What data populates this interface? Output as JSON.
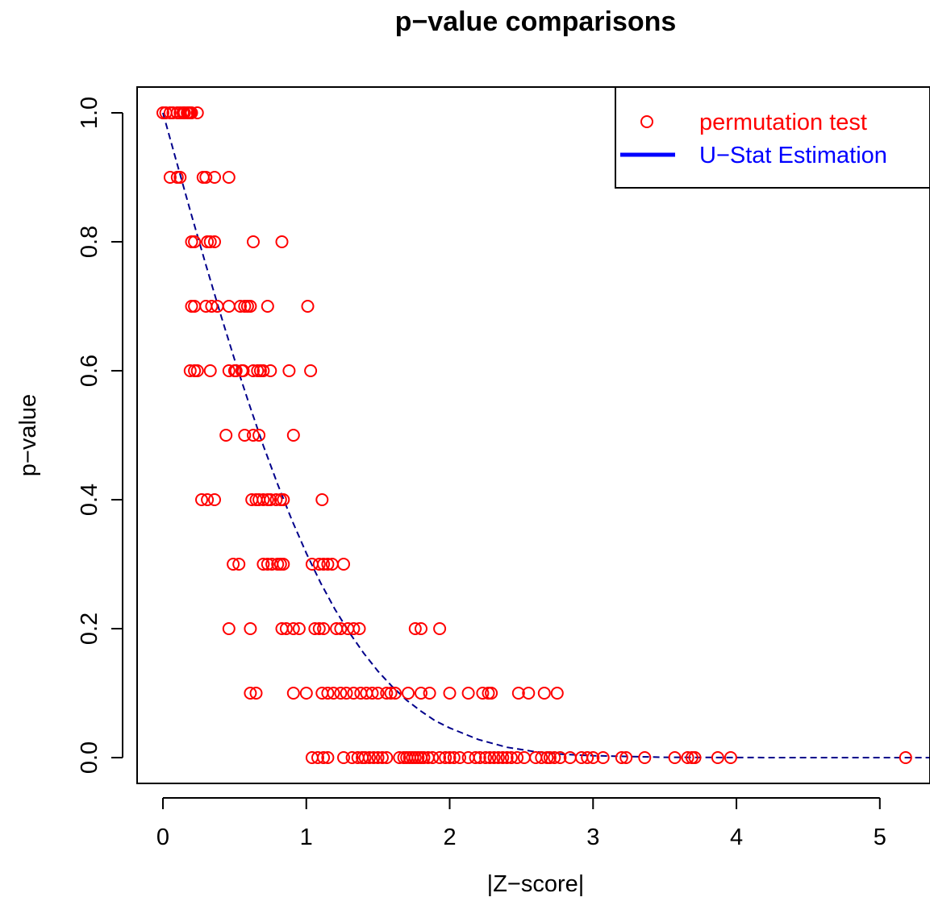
{
  "chart_data": {
    "type": "scatter",
    "title": "p−value comparisons",
    "xlabel": "|Z−score|",
    "ylabel": "p−value",
    "xlim": [
      -0.18,
      5.35
    ],
    "ylim": [
      -0.04,
      1.04
    ],
    "x_ticks": [
      0,
      1,
      2,
      3,
      4,
      5
    ],
    "x_tick_labels": [
      "0",
      "1",
      "2",
      "3",
      "4",
      "5"
    ],
    "y_ticks": [
      0.0,
      0.2,
      0.4,
      0.6,
      0.8,
      1.0
    ],
    "y_tick_labels": [
      "0.0",
      "0.2",
      "0.4",
      "0.6",
      "0.8",
      "1.0"
    ],
    "grid": false,
    "legend_position": "top-right",
    "colors": {
      "points": "#ff0000",
      "curve": "#00008b",
      "legend_line": "#0000ff"
    },
    "legend": [
      {
        "label": "permutation test",
        "marker": "open-circle",
        "color": "#ff0000"
      },
      {
        "label": "U−Stat Estimation",
        "marker": "line",
        "color": "#0000ff"
      }
    ],
    "series": [
      {
        "name": "permutation test",
        "kind": "points",
        "groups": [
          {
            "y": 1.0,
            "x": [
              0.0,
              0.02,
              0.05,
              0.07,
              0.1,
              0.12,
              0.14,
              0.15,
              0.17,
              0.18,
              0.19,
              0.2,
              0.24
            ]
          },
          {
            "y": 0.9,
            "x": [
              0.05,
              0.1,
              0.12,
              0.28,
              0.3,
              0.36,
              0.46
            ]
          },
          {
            "y": 0.8,
            "x": [
              0.2,
              0.22,
              0.31,
              0.33,
              0.36,
              0.63,
              0.83
            ]
          },
          {
            "y": 0.7,
            "x": [
              0.2,
              0.22,
              0.3,
              0.34,
              0.38,
              0.46,
              0.54,
              0.57,
              0.59,
              0.61,
              0.73,
              1.01
            ]
          },
          {
            "y": 0.6,
            "x": [
              0.19,
              0.22,
              0.24,
              0.33,
              0.46,
              0.5,
              0.51,
              0.55,
              0.56,
              0.63,
              0.66,
              0.68,
              0.7,
              0.75,
              0.88,
              1.03
            ]
          },
          {
            "y": 0.5,
            "x": [
              0.44,
              0.57,
              0.63,
              0.67,
              0.91
            ]
          },
          {
            "y": 0.4,
            "x": [
              0.27,
              0.31,
              0.36,
              0.62,
              0.65,
              0.67,
              0.7,
              0.73,
              0.75,
              0.79,
              0.82,
              0.84,
              1.11
            ]
          },
          {
            "y": 0.3,
            "x": [
              0.49,
              0.53,
              0.7,
              0.73,
              0.76,
              0.8,
              0.82,
              0.84,
              1.04,
              1.09,
              1.12,
              1.15,
              1.18,
              1.26
            ]
          },
          {
            "y": 0.2,
            "x": [
              0.46,
              0.61,
              0.83,
              0.86,
              0.91,
              0.95,
              1.06,
              1.09,
              1.12,
              1.21,
              1.24,
              1.29,
              1.33,
              1.37,
              1.76,
              1.8,
              1.93
            ]
          },
          {
            "y": 0.1,
            "x": [
              0.61,
              0.65,
              0.91,
              1.0,
              1.11,
              1.15,
              1.19,
              1.24,
              1.28,
              1.33,
              1.38,
              1.42,
              1.46,
              1.5,
              1.56,
              1.59,
              1.62,
              1.71,
              1.8,
              1.86,
              2.0,
              2.13,
              2.23,
              2.27,
              2.29,
              2.48,
              2.55,
              2.66,
              2.75
            ]
          },
          {
            "y": 0.0,
            "x": [
              1.04,
              1.08,
              1.12,
              1.15,
              1.26,
              1.32,
              1.36,
              1.39,
              1.41,
              1.44,
              1.47,
              1.5,
              1.53,
              1.56,
              1.65,
              1.68,
              1.7,
              1.72,
              1.74,
              1.76,
              1.78,
              1.8,
              1.82,
              1.85,
              1.88,
              1.93,
              1.97,
              2.0,
              2.03,
              2.07,
              2.13,
              2.18,
              2.21,
              2.25,
              2.28,
              2.31,
              2.34,
              2.37,
              2.4,
              2.43,
              2.47,
              2.52,
              2.6,
              2.64,
              2.68,
              2.7,
              2.73,
              2.77,
              2.84,
              2.92,
              2.96,
              3.0,
              3.07,
              3.2,
              3.23,
              3.36,
              3.57,
              3.66,
              3.69,
              3.71,
              3.87,
              3.96,
              5.18
            ]
          }
        ]
      },
      {
        "name": "U−Stat Estimation",
        "kind": "curve",
        "line_style": "dashed",
        "x": [
          0.0,
          0.1,
          0.2,
          0.3,
          0.4,
          0.5,
          0.6,
          0.7,
          0.8,
          0.9,
          1.0,
          1.1,
          1.2,
          1.3,
          1.4,
          1.5,
          1.6,
          1.7,
          1.8,
          1.9,
          2.0,
          2.2,
          2.4,
          2.6,
          2.8,
          3.0,
          3.5,
          4.0,
          4.5,
          5.0,
          5.35
        ],
        "y": [
          1.0,
          0.92,
          0.841,
          0.764,
          0.689,
          0.617,
          0.549,
          0.484,
          0.424,
          0.368,
          0.317,
          0.271,
          0.23,
          0.194,
          0.162,
          0.134,
          0.11,
          0.089,
          0.072,
          0.057,
          0.046,
          0.028,
          0.016,
          0.009,
          0.005,
          0.003,
          0.0005,
          0.0001,
          0.0,
          0.0,
          0.0
        ]
      }
    ]
  }
}
